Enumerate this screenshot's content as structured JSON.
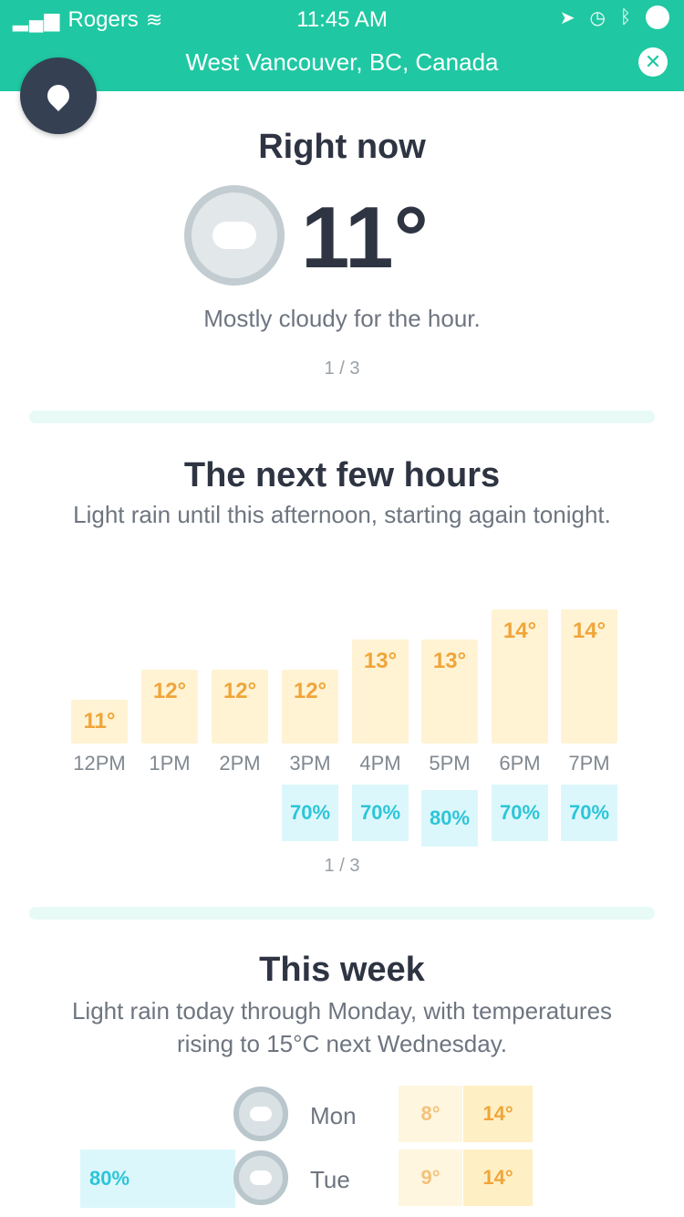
{
  "status_bar": {
    "carrier": "Rogers",
    "time": "11:45 AM",
    "signal_icon": "signal-bars-icon",
    "wifi_icon": "wifi-icon"
  },
  "header": {
    "location": "West Vancouver, BC, Canada",
    "close_icon": "close-icon",
    "close_label": "✕"
  },
  "right_now": {
    "title": "Right now",
    "temperature": "11°",
    "description": "Mostly cloudy for the hour.",
    "pagination": "1 / 3",
    "icon": "cloud-icon"
  },
  "next_hours": {
    "title": "The next few hours",
    "subtitle": "Light rain until this afternoon, starting again tonight.",
    "pagination": "1 / 3",
    "hours": [
      {
        "label": "12PM",
        "temp": "11°",
        "temp_value": 11,
        "rain": ""
      },
      {
        "label": "1PM",
        "temp": "12°",
        "temp_value": 12,
        "rain": ""
      },
      {
        "label": "2PM",
        "temp": "12°",
        "temp_value": 12,
        "rain": ""
      },
      {
        "label": "3PM",
        "temp": "12°",
        "temp_value": 12,
        "rain": "70%"
      },
      {
        "label": "4PM",
        "temp": "13°",
        "temp_value": 13,
        "rain": "70%"
      },
      {
        "label": "5PM",
        "temp": "13°",
        "temp_value": 13,
        "rain": "80%"
      },
      {
        "label": "6PM",
        "temp": "14°",
        "temp_value": 14,
        "rain": "70%"
      },
      {
        "label": "7PM",
        "temp": "14°",
        "temp_value": 14,
        "rain": "70%"
      }
    ]
  },
  "this_week": {
    "title": "This week",
    "subtitle": "Light rain today through Monday, with temperatures rising to 15°C next Wednesday.",
    "days": [
      {
        "day": "Mon",
        "low": "8°",
        "high": "14°",
        "rain": "",
        "icon": "cloud-icon"
      },
      {
        "day": "Tue",
        "low": "9°",
        "high": "14°",
        "rain": "80%",
        "icon": "cloud-icon"
      }
    ]
  },
  "colors": {
    "accent": "#1fc8a2",
    "temperature": "#f0a53a",
    "rain": "#2cc5d9"
  }
}
